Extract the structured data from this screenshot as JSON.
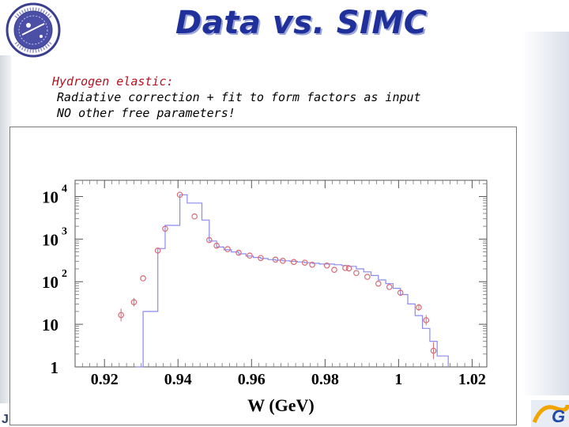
{
  "title": "Data vs. SIMC",
  "notes": {
    "line1": "Hydrogen elastic:",
    "line2": "Radiative correction + fit to form factors as input",
    "line3": "NO other free parameters!"
  },
  "colors": {
    "title": "#20309a",
    "data": "#d96a74",
    "simc": "#8a8af0"
  },
  "corner_text": "J",
  "chart_data": {
    "type": "scatter",
    "xlabel": "W (GeV)",
    "ylabel": "",
    "xlim": [
      0.912,
      1.024
    ],
    "ylim": [
      1,
      24000
    ],
    "yscale": "log",
    "x_ticks": [
      {
        "v": 0.92,
        "t": "0.92"
      },
      {
        "v": 0.94,
        "t": "0.94"
      },
      {
        "v": 0.96,
        "t": "0.96"
      },
      {
        "v": 0.98,
        "t": "0.98"
      },
      {
        "v": 1.0,
        "t": "1"
      },
      {
        "v": 1.02,
        "t": "1.02"
      }
    ],
    "y_ticks": [
      {
        "v": 1,
        "base": "1",
        "exp": ""
      },
      {
        "v": 10,
        "base": "10",
        "exp": ""
      },
      {
        "v": 100,
        "base": "10",
        "exp": "2"
      },
      {
        "v": 1000,
        "base": "10",
        "exp": "3"
      },
      {
        "v": 10000,
        "base": "10",
        "exp": "4"
      }
    ],
    "series": [
      {
        "kind": "points",
        "x": [
          0.9245,
          0.928,
          0.9305,
          0.9345,
          0.9365,
          0.9405,
          0.9445,
          0.9485,
          0.9505,
          0.9535,
          0.9565,
          0.9595,
          0.9625,
          0.9665,
          0.9685,
          0.9715,
          0.9745,
          0.9765,
          0.9805,
          0.9825,
          0.9855,
          0.9865,
          0.9885,
          0.9915,
          0.9945,
          0.9975,
          1.0005,
          1.0055,
          1.0075,
          1.0095
        ],
        "y": [
          16.5,
          33,
          120,
          540,
          1750,
          11000,
          3400,
          950,
          700,
          580,
          480,
          410,
          360,
          330,
          310,
          290,
          280,
          250,
          240,
          190,
          210,
          205,
          160,
          130,
          90,
          75,
          55,
          25,
          12.5,
          2.4
        ],
        "yerr": [
          0.15,
          0.1,
          0.05,
          0.03,
          0.03,
          0.03,
          0.03,
          0.03,
          0.03,
          0.03,
          0.03,
          0.03,
          0.03,
          0.03,
          0.03,
          0.03,
          0.03,
          0.03,
          0.03,
          0.03,
          0.03,
          0.03,
          0.03,
          0.03,
          0.03,
          0.03,
          0.05,
          0.08,
          0.12,
          0.2
        ]
      },
      {
        "kind": "step",
        "x": [
          0.9285,
          0.9305,
          0.9345,
          0.9365,
          0.9405,
          0.9425,
          0.9465,
          0.9485,
          0.9505,
          0.9525,
          0.9545,
          0.9565,
          0.9585,
          0.9605,
          0.9625,
          0.9645,
          0.9665,
          0.9685,
          0.9705,
          0.9725,
          0.9745,
          0.9765,
          0.9785,
          0.9805,
          0.9825,
          0.9845,
          0.9865,
          0.9885,
          0.9905,
          0.9925,
          0.9945,
          0.9965,
          0.9985,
          1.0005,
          1.0025,
          1.0045,
          1.0065,
          1.0085,
          1.0105
        ],
        "y": [
          1,
          20,
          600,
          2100,
          11000,
          7000,
          2800,
          900,
          650,
          560,
          500,
          450,
          400,
          370,
          350,
          330,
          320,
          310,
          300,
          290,
          280,
          270,
          260,
          260,
          250,
          240,
          230,
          200,
          170,
          140,
          110,
          90,
          70,
          50,
          30,
          16,
          8,
          4,
          1.8
        ]
      }
    ]
  }
}
